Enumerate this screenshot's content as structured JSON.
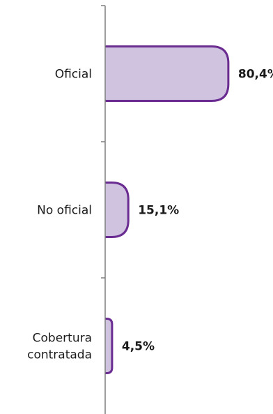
{
  "chart_data": {
    "type": "bar",
    "orientation": "horizontal",
    "categories": [
      "Oficial",
      "No oficial",
      "Cobertura contratada"
    ],
    "category_lines": [
      [
        "Oficial"
      ],
      [
        "No oficial"
      ],
      [
        "Cobertura",
        "contratada"
      ]
    ],
    "values": [
      80.4,
      15.1,
      4.5
    ],
    "value_labels": [
      "80,4%",
      "15,1%",
      "4,5%"
    ],
    "unit": "%",
    "xlim": [
      0,
      100
    ],
    "title": "",
    "xlabel": "",
    "ylabel": "",
    "grid": false,
    "legend": "none"
  },
  "colors": {
    "bar_fill": "#cfc3e0",
    "bar_stroke": "#6a2c91",
    "axis": "#7f7f7f",
    "text": "#1a1a1a"
  }
}
